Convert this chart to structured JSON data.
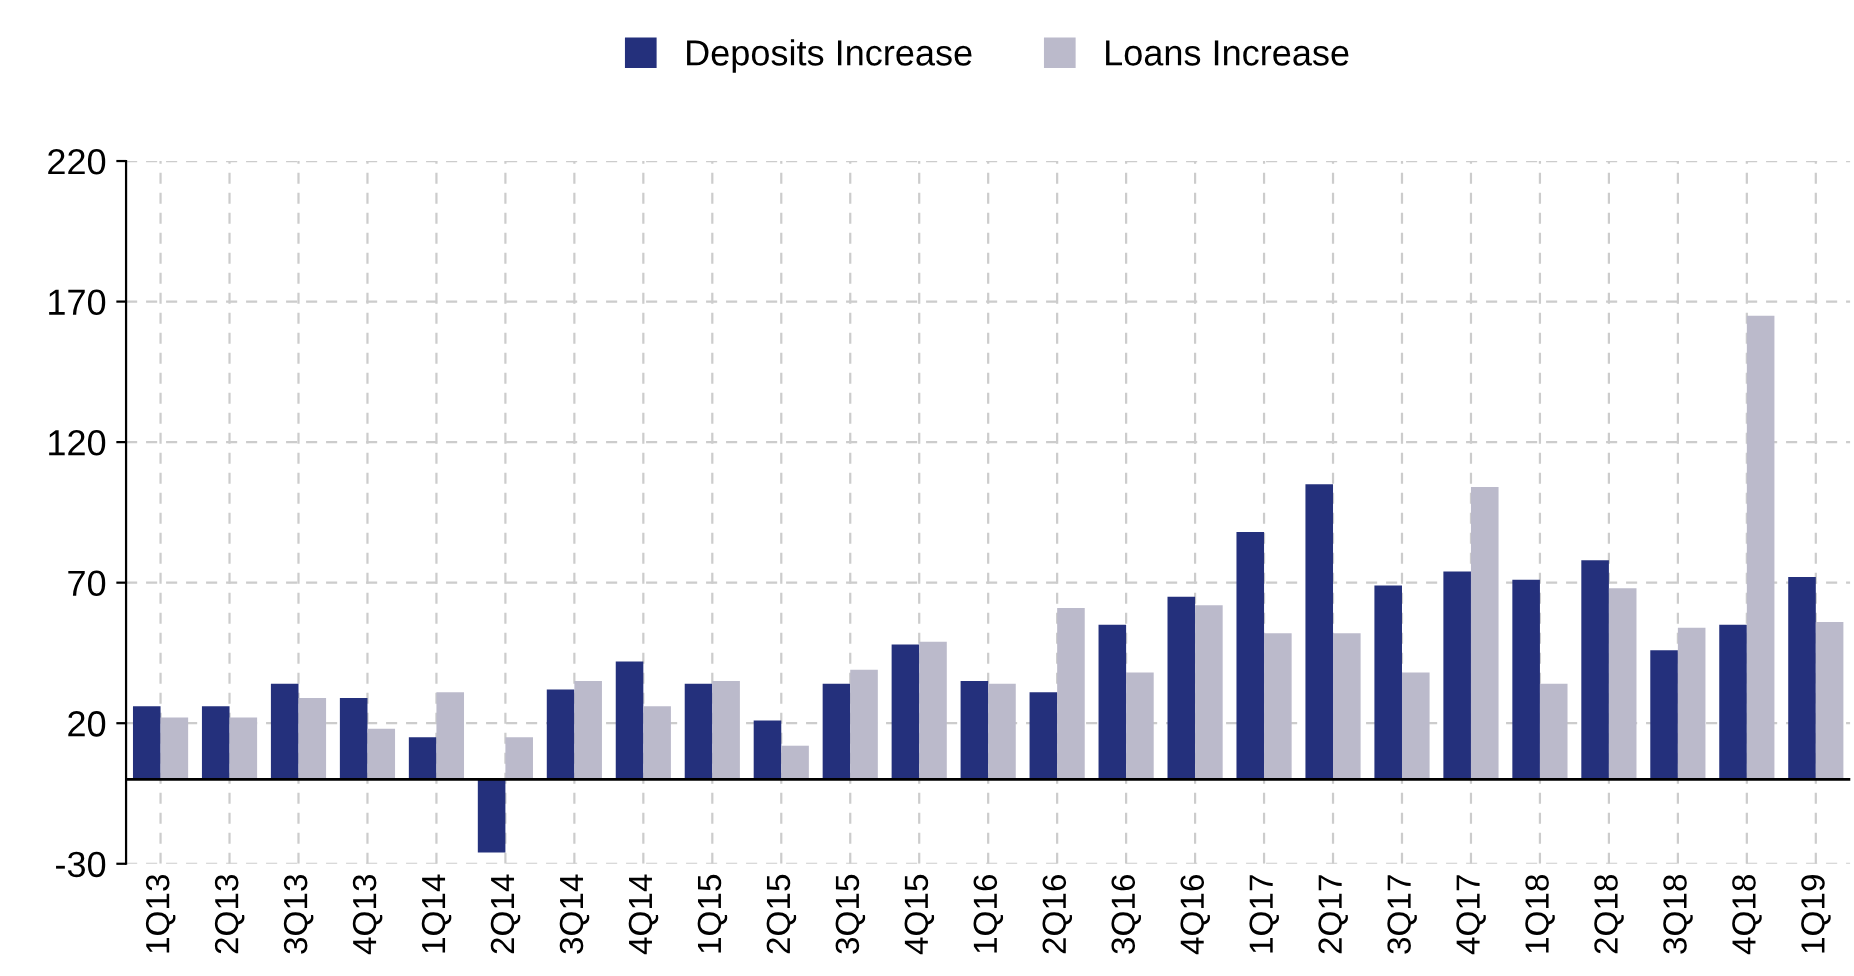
{
  "chart_data": {
    "type": "bar",
    "categories": [
      "1Q13",
      "2Q13",
      "3Q13",
      "4Q13",
      "1Q14",
      "2Q14",
      "3Q14",
      "4Q14",
      "1Q15",
      "2Q15",
      "3Q15",
      "4Q15",
      "1Q16",
      "2Q16",
      "3Q16",
      "4Q16",
      "1Q17",
      "2Q17",
      "3Q17",
      "4Q17",
      "1Q18",
      "2Q18",
      "3Q18",
      "4Q18",
      "1Q19"
    ],
    "series": [
      {
        "name": "Deposits Increase",
        "color": "#24307c",
        "values": [
          26,
          26,
          34,
          29,
          15,
          -26,
          32,
          42,
          34,
          21,
          34,
          48,
          35,
          31,
          55,
          65,
          88,
          105,
          69,
          74,
          71,
          78,
          46,
          55,
          72
        ]
      },
      {
        "name": "Loans Increase",
        "color": "#bbbacb",
        "values": [
          22,
          22,
          29,
          18,
          31,
          15,
          35,
          26,
          35,
          12,
          39,
          49,
          34,
          61,
          38,
          62,
          52,
          52,
          38,
          104,
          34,
          68,
          54,
          165,
          56
        ]
      }
    ],
    "ylim": [
      -30,
      220
    ],
    "yticks": [
      -30,
      20,
      70,
      120,
      170,
      220
    ],
    "grid": true,
    "legend": "top"
  }
}
